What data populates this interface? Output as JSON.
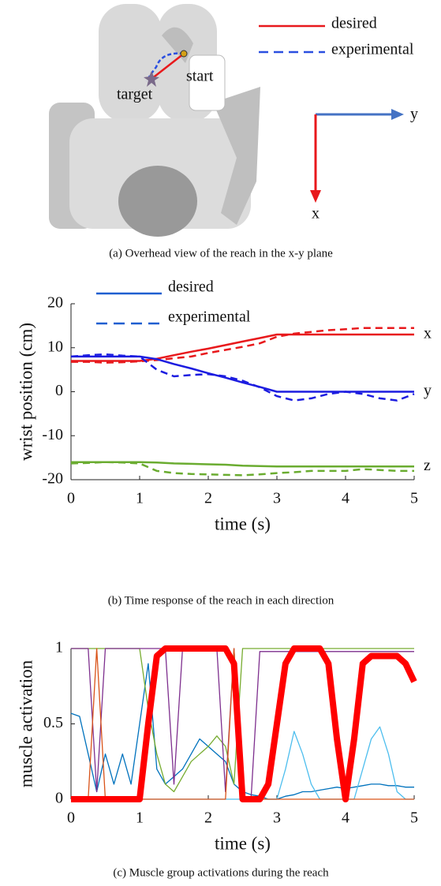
{
  "figure": {
    "overhead": {
      "legend": [
        "desired",
        "experimental"
      ],
      "desired_color": "#e8191c",
      "experimental_color": "#2b4fe0",
      "start_label": "start",
      "target_label": "target",
      "axis_y_label": "y",
      "axis_x_label": "x"
    },
    "captions": [
      "(a) Overhead view of the reach in the x-y plane",
      "(b) Time response of the reach in each direction",
      "(c) Muscle group activations during the reach"
    ]
  },
  "chart_data": [
    {
      "type": "line",
      "ylabel": "wrist position (cm)",
      "xlabel": "time (s)",
      "x": [
        0,
        0.25,
        0.5,
        0.75,
        1,
        1.25,
        1.5,
        1.75,
        2,
        2.25,
        2.5,
        2.75,
        3,
        3.25,
        3.5,
        3.75,
        4,
        4.25,
        4.5,
        4.75,
        5
      ],
      "xlim": [
        0,
        5
      ],
      "xticks": [
        0,
        1,
        2,
        3,
        4,
        5
      ],
      "ylim": [
        -20,
        20
      ],
      "yticks": [
        -20,
        -10,
        0,
        10,
        20
      ],
      "legend": [
        "desired",
        "experimental"
      ],
      "legend_color": "#1f5fd0",
      "series": [
        {
          "name": "x",
          "color": "#e8191c",
          "desired": [
            7,
            7,
            7,
            7,
            7,
            7.5,
            8.3,
            9.1,
            9.8,
            10.6,
            11.4,
            12.2,
            13,
            13,
            13,
            13,
            13,
            13,
            13,
            13,
            13
          ],
          "experimental": [
            6.8,
            6.8,
            6.6,
            6.7,
            6.9,
            7.2,
            7.6,
            8,
            8.8,
            9.5,
            10.2,
            11,
            12.5,
            13.2,
            13.6,
            14,
            14.2,
            14.5,
            14.5,
            14.5,
            14.5
          ]
        },
        {
          "name": "y",
          "color": "#1c1ce0",
          "desired": [
            8,
            8,
            8,
            8,
            8,
            7.4,
            6.3,
            5.3,
            4.2,
            3.2,
            2.1,
            1.1,
            0,
            0,
            0,
            0,
            0,
            0,
            0,
            0,
            0
          ],
          "experimental": [
            8,
            8.3,
            8.5,
            8.2,
            8,
            5,
            3.5,
            3.8,
            4,
            3.5,
            2.5,
            1,
            -1,
            -2,
            -1.5,
            -0.5,
            0,
            -0.5,
            -1.5,
            -2,
            -0.5
          ]
        },
        {
          "name": "z",
          "color": "#6aac30",
          "desired": [
            -16,
            -16,
            -16,
            -16,
            -16,
            -16.1,
            -16.3,
            -16.4,
            -16.5,
            -16.6,
            -16.8,
            -16.9,
            -17,
            -17,
            -17,
            -17,
            -17,
            -17,
            -17,
            -17,
            -17
          ],
          "experimental": [
            -16.3,
            -16.2,
            -16,
            -16.1,
            -16.3,
            -18,
            -18.5,
            -18.7,
            -18.8,
            -18.9,
            -19,
            -18.8,
            -18.5,
            -18.3,
            -18,
            -18,
            -18,
            -17.6,
            -17.8,
            -18,
            -18
          ]
        }
      ]
    },
    {
      "type": "line",
      "ylabel": "muscle activation",
      "xlabel": "time (s)",
      "x": [
        0,
        0.125,
        0.25,
        0.375,
        0.5,
        0.625,
        0.75,
        0.875,
        1,
        1.125,
        1.25,
        1.375,
        1.5,
        1.625,
        1.75,
        1.875,
        2,
        2.125,
        2.25,
        2.375,
        2.5,
        2.625,
        2.75,
        2.875,
        3,
        3.125,
        3.25,
        3.375,
        3.5,
        3.625,
        3.75,
        3.875,
        4,
        4.125,
        4.25,
        4.375,
        4.5,
        4.625,
        4.75,
        4.875,
        5
      ],
      "xlim": [
        0,
        5
      ],
      "xticks": [
        0,
        1,
        2,
        3,
        4,
        5
      ],
      "ylim": [
        0,
        1
      ],
      "yticks": [
        0,
        0.5,
        1
      ],
      "series": [
        {
          "color": "#0072bd",
          "linewidth": 1.3,
          "values": [
            0.57,
            0.55,
            0.3,
            0.05,
            0.3,
            0.1,
            0.3,
            0.1,
            0.5,
            0.9,
            0.2,
            0.1,
            0.15,
            0.2,
            0.3,
            0.4,
            0.35,
            0.3,
            0.25,
            0.1,
            0.05,
            0.03,
            0.02,
            0,
            0,
            0.02,
            0.03,
            0.05,
            0.05,
            0.06,
            0.07,
            0.08,
            0.07,
            0.08,
            0.09,
            0.1,
            0.1,
            0.09,
            0.09,
            0.08,
            0.08
          ]
        },
        {
          "color": "#77ac30",
          "linewidth": 1.3,
          "values": [
            1,
            1,
            1,
            1,
            1,
            1,
            1,
            1,
            1,
            0.6,
            0.3,
            0.1,
            0.05,
            0.15,
            0.25,
            0.3,
            0.35,
            0.42,
            0.35,
            0.1,
            1,
            1,
            1,
            1,
            1,
            1,
            1,
            1,
            1,
            1,
            1,
            1,
            1,
            1,
            1,
            1,
            1,
            1,
            1,
            1,
            1
          ]
        },
        {
          "color": "#7e2f8e",
          "linewidth": 1.3,
          "values": [
            1,
            1,
            1,
            0.05,
            1,
            1,
            1,
            1,
            1,
            1,
            1,
            1,
            0.1,
            1,
            1,
            1,
            1,
            1,
            0.05,
            1,
            0,
            0.02,
            0.98,
            0.98,
            0.98,
            0.98,
            0.98,
            0.98,
            0.98,
            0.98,
            0.98,
            0.98,
            0.98,
            0.98,
            0.98,
            0.98,
            0.98,
            0.98,
            0.98,
            0.98,
            0.98
          ]
        },
        {
          "color": "#4dbeee",
          "linewidth": 1.3,
          "values": [
            0,
            0,
            0,
            0,
            0,
            0,
            0,
            0,
            0,
            0,
            0,
            0,
            0,
            0,
            0,
            0,
            0,
            0,
            0,
            0,
            0,
            0,
            0,
            0,
            0,
            0.2,
            0.45,
            0.3,
            0.1,
            0,
            0,
            0,
            0,
            0,
            0.2,
            0.4,
            0.48,
            0.3,
            0.05,
            0,
            0
          ]
        },
        {
          "color": "#d95319",
          "linewidth": 1.3,
          "values": [
            0,
            0,
            0,
            1,
            0,
            0,
            0,
            0,
            0,
            0,
            0,
            0,
            0,
            0,
            0,
            0,
            0,
            0,
            0,
            1,
            0,
            0,
            0,
            0,
            0,
            0,
            0,
            0,
            0,
            0,
            0,
            0,
            0,
            0,
            0,
            0,
            0,
            0,
            0,
            0,
            0
          ]
        },
        {
          "color": "#ff0000",
          "linewidth": 8,
          "values": [
            0,
            0,
            0,
            0,
            0,
            0,
            0,
            0,
            0,
            0.5,
            0.95,
            1,
            1,
            1,
            1,
            1,
            1,
            1,
            1,
            0.9,
            0,
            0,
            0,
            0.1,
            0.5,
            0.9,
            1,
            1,
            1,
            1,
            0.9,
            0.4,
            0,
            0.4,
            0.9,
            0.95,
            0.95,
            0.95,
            0.95,
            0.9,
            0.78
          ]
        }
      ]
    }
  ]
}
